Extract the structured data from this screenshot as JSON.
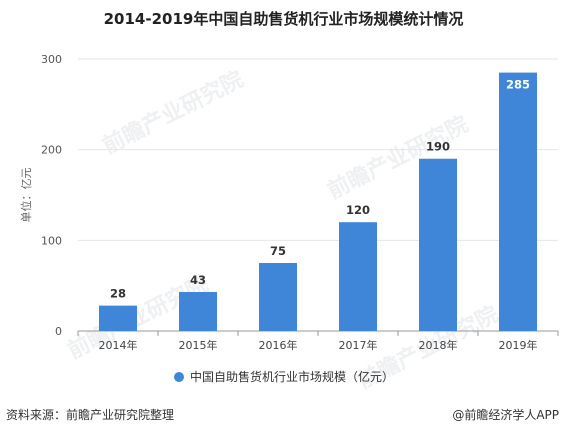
{
  "title": "2014-2019年中国自助售货机行业市场规模统计情况",
  "source": "资料来源：前瞻产业研究院整理",
  "brand": "@前瞻经济学人APP",
  "watermark": "前瞻产业研究院",
  "colors": {
    "bar": "#3f86d8",
    "axis": "#999999",
    "grid": "#e6e6e6"
  },
  "chart_data": {
    "type": "bar",
    "categories": [
      "2014年",
      "2015年",
      "2016年",
      "2017年",
      "2018年",
      "2019年"
    ],
    "series": [
      {
        "name": "中国自助售货机行业市场规模（亿元）",
        "values": [
          28,
          43,
          75,
          120,
          190,
          285
        ]
      }
    ],
    "data_labels": [
      "28",
      "43",
      "75",
      "120",
      "190",
      "285"
    ],
    "ylabel": "单位：亿元",
    "yticks": [
      "0",
      "100",
      "200",
      "300"
    ],
    "ylim": [
      0,
      300
    ],
    "legend_position": "bottom"
  }
}
